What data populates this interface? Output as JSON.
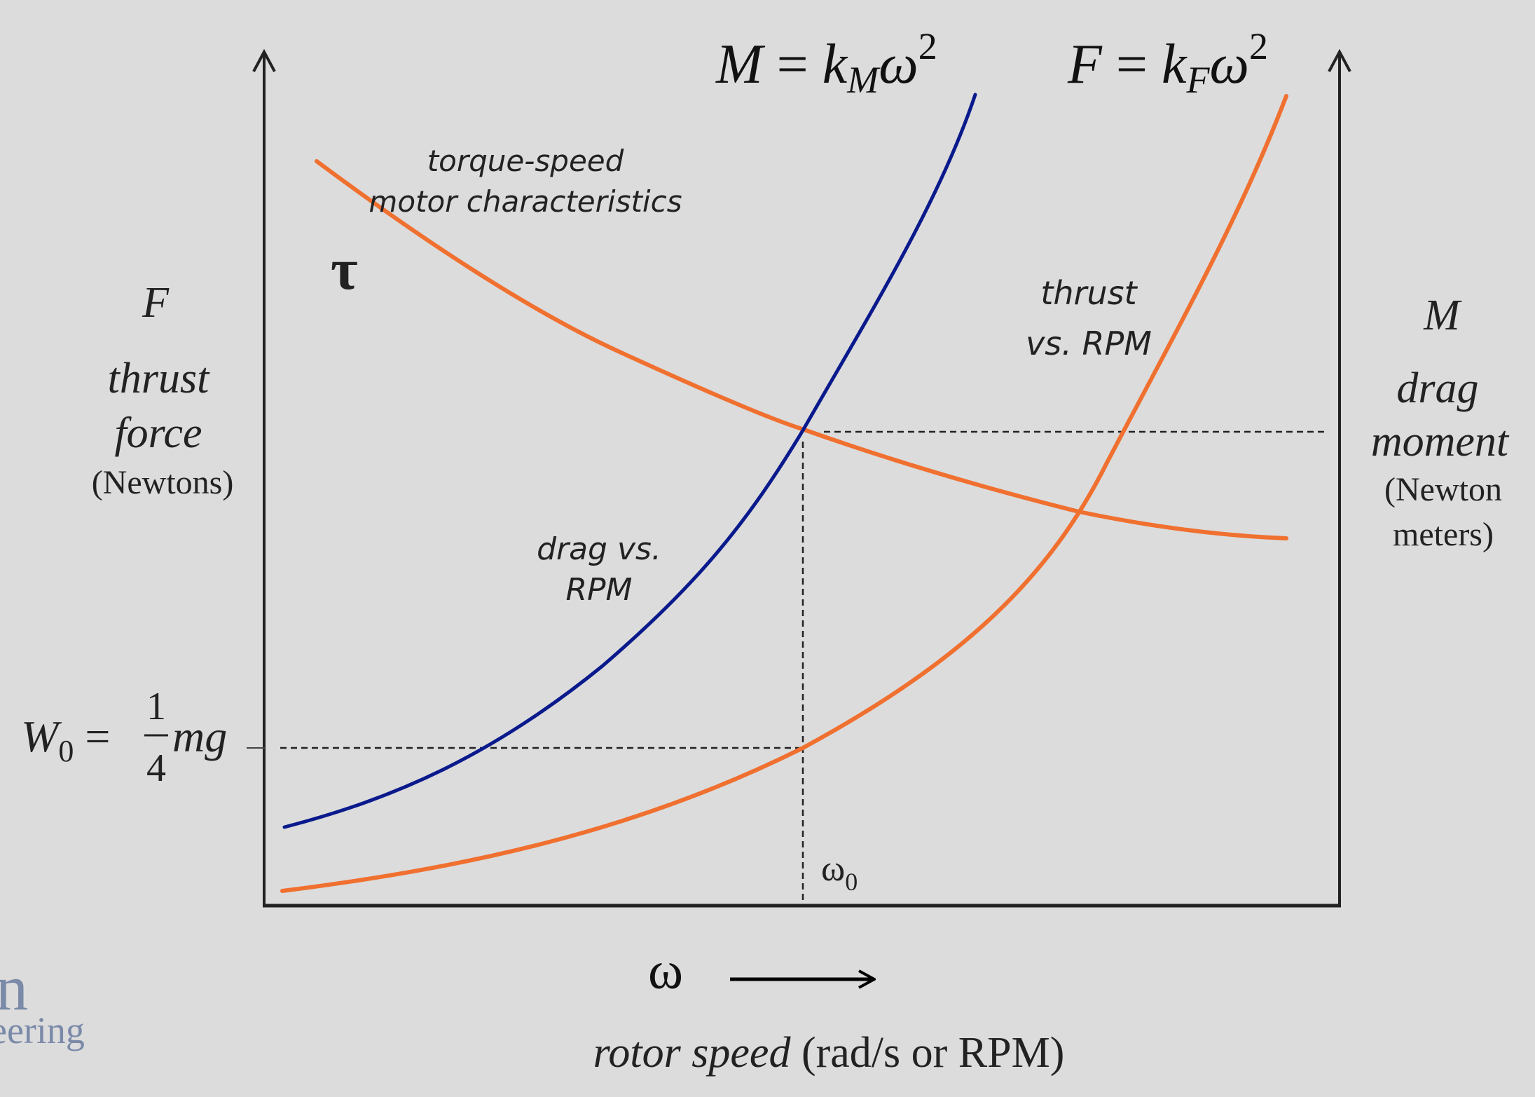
{
  "colors": {
    "background": "#dcdcdc",
    "axis": "#222222",
    "orange_curve": "#f07030",
    "blue_curve": "#0a1a8c",
    "dashed": "#222222",
    "logo_text": "#7a8aa8"
  },
  "chart_data": {
    "type": "line",
    "x_label": {
      "symbol": "ω",
      "text_italic": "rotor speed",
      "text_plain": " (rad/s or RPM)"
    },
    "left_axis": {
      "symbol": "F",
      "line1": "thrust",
      "line2": "force",
      "unit": "(Newtons)"
    },
    "right_axis": {
      "symbol": "M",
      "line1": "drag",
      "line2": "moment",
      "unit_line1": "(Newton",
      "unit_line2": "meters)"
    },
    "equations": {
      "moment": {
        "lhs": "M",
        "eq": " = ",
        "k": "k",
        "k_sub": "M",
        "w": "ω",
        "exp": "2"
      },
      "force": {
        "lhs": "F",
        "eq": " = ",
        "k": "k",
        "k_sub": "F",
        "w": "ω",
        "exp": "2"
      }
    },
    "weight_label": {
      "lhs": "W",
      "lhs_sub": "0",
      "eq": " = ",
      "num": "1",
      "den": "4",
      "rest": "mg"
    },
    "omega0_label": {
      "symbol": "ω",
      "sub": "0"
    },
    "tau_label": "τ",
    "annotations": {
      "torque_line1": "torque-speed",
      "torque_line2": "motor characteristics",
      "thrust_line1": "thrust",
      "thrust_line2": "vs. RPM",
      "drag_line1": "drag vs.",
      "drag_line2": "RPM"
    },
    "series": [
      {
        "curve": "torque",
        "color": "#f07030",
        "shape": "decreasing"
      },
      {
        "curve": "drag",
        "color": "#0a1a8c",
        "shape": "quadratic"
      },
      {
        "curve": "thrust",
        "color": "#f07030",
        "shape": "quadratic"
      }
    ]
  },
  "logo": {
    "line1": "n",
    "line2": "eering"
  }
}
